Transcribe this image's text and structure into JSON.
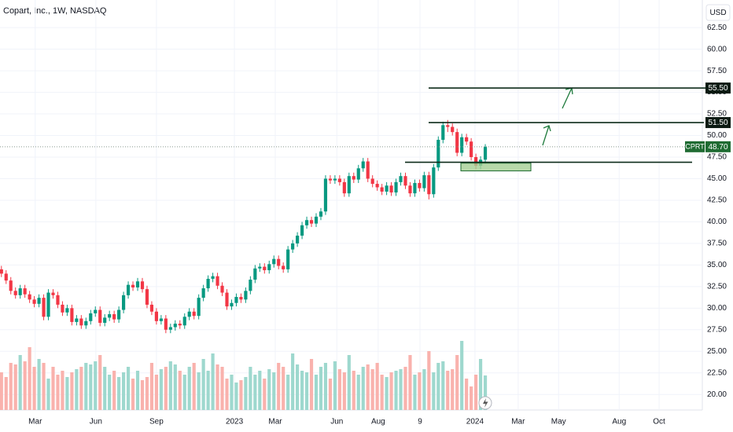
{
  "chart_data": {
    "type": "candlestick",
    "title": "Copart, Inc., 1W, NASDAQ",
    "currency": "USD",
    "open": [
      34.5,
      34.0,
      33.2,
      32.0,
      31.5,
      32.3,
      31.6,
      31.0,
      30.5,
      31.2,
      29.0,
      31.8,
      31.5,
      30.4,
      29.5,
      30.0,
      28.4,
      28.8,
      28.0,
      28.5,
      29.4,
      29.8,
      28.3,
      28.9,
      29.3,
      28.7,
      29.8,
      31.5,
      32.7,
      32.4,
      33.1,
      32.2,
      30.4,
      29.6,
      28.5,
      28.8,
      27.5,
      27.8,
      28.2,
      28.0,
      29.0,
      29.6,
      29.1,
      31.2,
      32.3,
      33.4,
      33.7,
      32.6,
      31.8,
      30.2,
      30.6,
      31.3,
      31.0,
      32.0,
      33.3,
      34.6,
      34.8,
      34.4,
      35.1,
      35.7,
      34.9,
      34.5,
      36.8,
      37.5,
      38.4,
      39.6,
      40.2,
      39.8,
      40.6,
      41.2,
      45.0,
      44.8,
      45.0,
      44.6,
      43.3,
      45.3,
      44.9,
      46.2,
      47.0,
      45.0,
      44.4,
      44.0,
      43.5,
      44.2,
      43.4,
      44.6,
      45.3,
      44.2,
      43.3,
      44.5,
      43.9,
      45.4,
      43.2,
      46.3,
      49.5,
      51.2,
      51.0,
      50.4,
      48.0,
      49.8,
      49.3,
      47.5,
      46.5,
      47.2
    ],
    "high": [
      34.9,
      34.4,
      33.6,
      32.4,
      32.7,
      32.7,
      32.0,
      31.4,
      31.6,
      31.6,
      32.2,
      32.2,
      31.9,
      30.8,
      30.4,
      30.4,
      29.2,
      29.2,
      28.9,
      29.8,
      30.2,
      30.2,
      29.3,
      29.7,
      29.7,
      30.2,
      31.9,
      33.1,
      33.1,
      33.5,
      33.5,
      32.6,
      30.8,
      30.0,
      29.2,
      29.2,
      28.2,
      28.6,
      28.6,
      29.4,
      30.0,
      30.0,
      31.6,
      32.7,
      33.8,
      34.1,
      34.1,
      33.0,
      32.2,
      31.0,
      31.7,
      31.7,
      32.4,
      33.7,
      35.0,
      35.2,
      35.2,
      35.5,
      36.1,
      36.1,
      35.3,
      37.2,
      37.9,
      38.8,
      40.0,
      40.6,
      40.6,
      41.0,
      41.6,
      45.4,
      45.4,
      45.4,
      45.4,
      45.0,
      45.7,
      45.7,
      46.6,
      47.4,
      47.4,
      45.4,
      44.8,
      44.4,
      44.6,
      44.6,
      45.0,
      45.7,
      45.7,
      44.6,
      44.9,
      44.9,
      45.8,
      45.8,
      46.7,
      49.9,
      51.6,
      51.8,
      51.4,
      50.8,
      50.2,
      50.2,
      49.7,
      47.9,
      47.6,
      49.0
    ],
    "low": [
      33.6,
      32.8,
      31.6,
      31.1,
      31.1,
      31.2,
      30.6,
      30.1,
      30.1,
      28.6,
      28.6,
      31.1,
      30.0,
      29.1,
      29.1,
      28.0,
      28.0,
      27.6,
      27.6,
      28.1,
      29.0,
      27.9,
      27.9,
      28.5,
      28.3,
      28.3,
      29.4,
      31.1,
      32.0,
      32.0,
      31.8,
      30.0,
      29.2,
      28.1,
      28.1,
      27.1,
      27.1,
      27.4,
      27.6,
      27.6,
      28.6,
      28.7,
      28.7,
      30.8,
      31.9,
      33.0,
      32.2,
      31.4,
      29.8,
      29.8,
      30.2,
      30.6,
      30.6,
      31.6,
      32.9,
      34.2,
      34.0,
      34.0,
      34.7,
      34.5,
      34.1,
      34.1,
      36.4,
      37.1,
      38.0,
      39.2,
      39.4,
      39.4,
      40.2,
      40.8,
      44.4,
      44.4,
      44.2,
      42.9,
      42.9,
      44.5,
      44.5,
      45.8,
      44.6,
      44.0,
      43.6,
      43.1,
      43.1,
      43.0,
      43.0,
      44.2,
      43.8,
      42.9,
      42.9,
      43.5,
      43.5,
      42.6,
      42.8,
      45.9,
      49.1,
      50.4,
      50.0,
      47.6,
      47.6,
      48.9,
      47.1,
      46.1,
      46.1,
      46.8
    ],
    "close": [
      34.0,
      33.2,
      32.0,
      31.5,
      32.3,
      31.6,
      31.0,
      30.5,
      31.2,
      29.0,
      31.8,
      31.5,
      30.4,
      29.5,
      30.0,
      28.4,
      28.8,
      28.0,
      28.5,
      29.4,
      29.8,
      28.3,
      28.9,
      29.3,
      28.7,
      29.8,
      31.5,
      32.7,
      32.4,
      33.1,
      32.2,
      30.4,
      29.6,
      28.5,
      28.8,
      27.5,
      27.8,
      28.2,
      28.0,
      29.0,
      29.6,
      29.1,
      31.2,
      32.3,
      33.4,
      33.7,
      32.6,
      31.8,
      30.2,
      30.6,
      31.3,
      31.0,
      32.0,
      33.3,
      34.6,
      34.8,
      34.4,
      35.1,
      35.7,
      34.9,
      34.5,
      36.8,
      37.5,
      38.4,
      39.6,
      40.2,
      39.8,
      40.6,
      41.2,
      45.0,
      44.8,
      45.0,
      44.6,
      43.3,
      45.3,
      44.9,
      46.2,
      47.0,
      45.0,
      44.4,
      44.0,
      43.5,
      44.2,
      43.4,
      44.6,
      45.3,
      44.2,
      43.3,
      44.5,
      43.9,
      45.4,
      43.2,
      46.3,
      49.5,
      51.2,
      51.0,
      50.4,
      48.0,
      49.8,
      49.3,
      47.5,
      46.5,
      47.2,
      48.7
    ],
    "volume": [
      48,
      42,
      60,
      58,
      70,
      62,
      80,
      55,
      65,
      60,
      40,
      55,
      45,
      50,
      42,
      48,
      52,
      55,
      60,
      58,
      62,
      70,
      55,
      45,
      50,
      42,
      48,
      55,
      40,
      50,
      38,
      42,
      60,
      45,
      52,
      55,
      62,
      58,
      50,
      45,
      55,
      60,
      48,
      65,
      50,
      72,
      58,
      55,
      40,
      45,
      35,
      38,
      42,
      55,
      45,
      50,
      40,
      52,
      48,
      60,
      55,
      45,
      72,
      58,
      50,
      48,
      65,
      45,
      55,
      60,
      40,
      62,
      52,
      48,
      70,
      50,
      45,
      55,
      58,
      52,
      60,
      45,
      42,
      48,
      50,
      52,
      55,
      70,
      45,
      48,
      52,
      75,
      48,
      60,
      62,
      50,
      52,
      70,
      88,
      40,
      30,
      45,
      65,
      44
    ],
    "vlim": [
      0,
      100
    ],
    "up_color": "#089981",
    "down_color": "#f23645",
    "up_volume_color": "#9ed8ce",
    "down_volume_color": "#f9b2ad",
    "ylim": [
      18.2,
      65.7
    ],
    "yticks": [
      {
        "value": 20,
        "label": "20.00"
      },
      {
        "value": 22.5,
        "label": "22.50"
      },
      {
        "value": 25,
        "label": "25.00"
      },
      {
        "value": 27.5,
        "label": "27.50"
      },
      {
        "value": 30,
        "label": "30.00"
      },
      {
        "value": 32.5,
        "label": "32.50"
      },
      {
        "value": 35,
        "label": "35.00"
      },
      {
        "value": 37.5,
        "label": "37.50"
      },
      {
        "value": 40,
        "label": "40.00"
      },
      {
        "value": 42.5,
        "label": "42.50"
      },
      {
        "value": 45,
        "label": "45.00"
      },
      {
        "value": 47.5,
        "label": "47.50"
      },
      {
        "value": 50,
        "label": "50.00"
      },
      {
        "value": 52.5,
        "label": "52.50"
      },
      {
        "value": 55,
        "label": "55.00"
      },
      {
        "value": 57.5,
        "label": "57.50"
      },
      {
        "value": 60,
        "label": "60.00"
      },
      {
        "value": 62.5,
        "label": "62.50"
      }
    ],
    "xlim": [
      -0.3,
      149.2
    ],
    "xticks": [
      {
        "value": 7.2,
        "label": "Mar"
      },
      {
        "value": 20.1,
        "label": "Jun"
      },
      {
        "value": 33,
        "label": "Sep"
      },
      {
        "value": 49.6,
        "label": "2023"
      },
      {
        "value": 58.3,
        "label": "Mar"
      },
      {
        "value": 71.4,
        "label": "Jun"
      },
      {
        "value": 80.2,
        "label": "Aug"
      },
      {
        "value": 89.1,
        "label": "9"
      },
      {
        "value": 100.8,
        "label": "2024"
      },
      {
        "value": 110,
        "label": "Mar"
      },
      {
        "value": 118.6,
        "label": "May"
      },
      {
        "value": 131.5,
        "label": "Aug"
      },
      {
        "value": 140,
        "label": "Oct"
      }
    ],
    "levels": [
      {
        "value": 55.5,
        "label": "55.50"
      },
      {
        "value": 51.5,
        "label": "51.50"
      },
      {
        "value": 46.9
      }
    ],
    "zone": {
      "low": 45.9,
      "high": 46.8,
      "color": "#a5cf94"
    },
    "last_price": {
      "symbol": "CPRT",
      "value": 48.7,
      "label": "48.70",
      "color": "#1f6b32"
    }
  }
}
